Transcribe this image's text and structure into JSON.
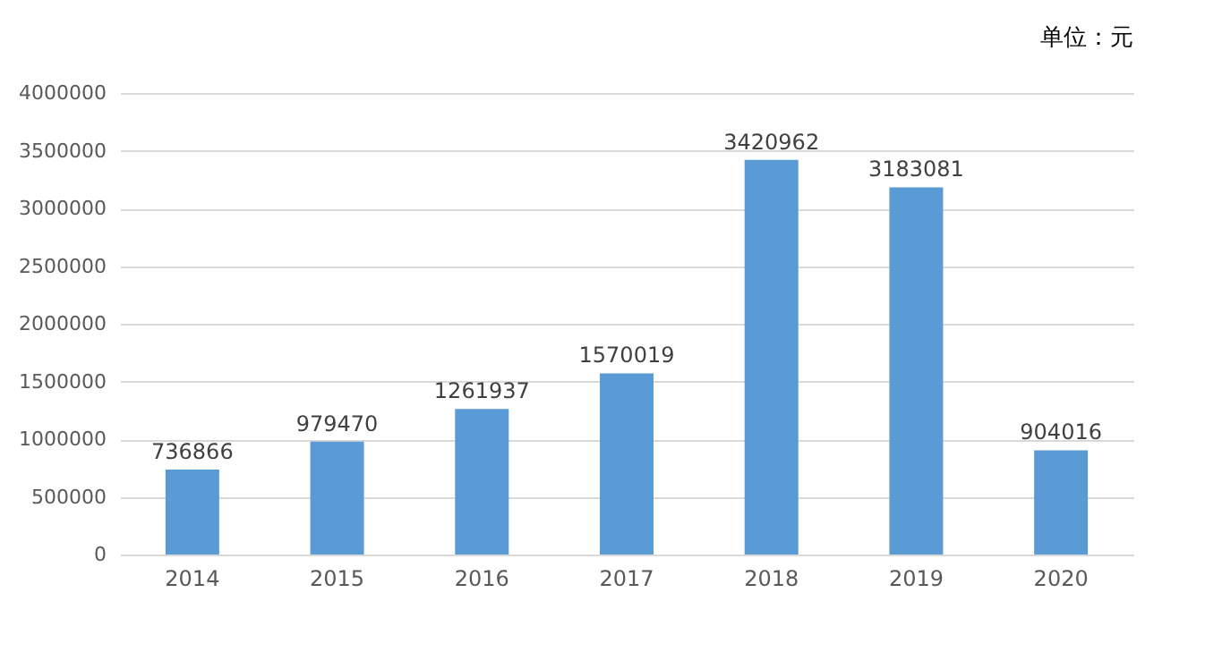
{
  "chart_data": {
    "type": "bar",
    "categories": [
      "2014",
      "2015",
      "2016",
      "2017",
      "2018",
      "2019",
      "2020"
    ],
    "values": [
      736866,
      979470,
      1261937,
      1570019,
      3420962,
      3183081,
      904016
    ],
    "color": "#5b9bd5",
    "ylim": [
      0,
      4000000
    ],
    "yticks": [
      0,
      500000,
      1000000,
      1500000,
      2000000,
      2500000,
      3000000,
      3500000,
      4000000
    ],
    "grid": "y",
    "data_labels": true,
    "annotations": [
      "单位：元"
    ]
  }
}
